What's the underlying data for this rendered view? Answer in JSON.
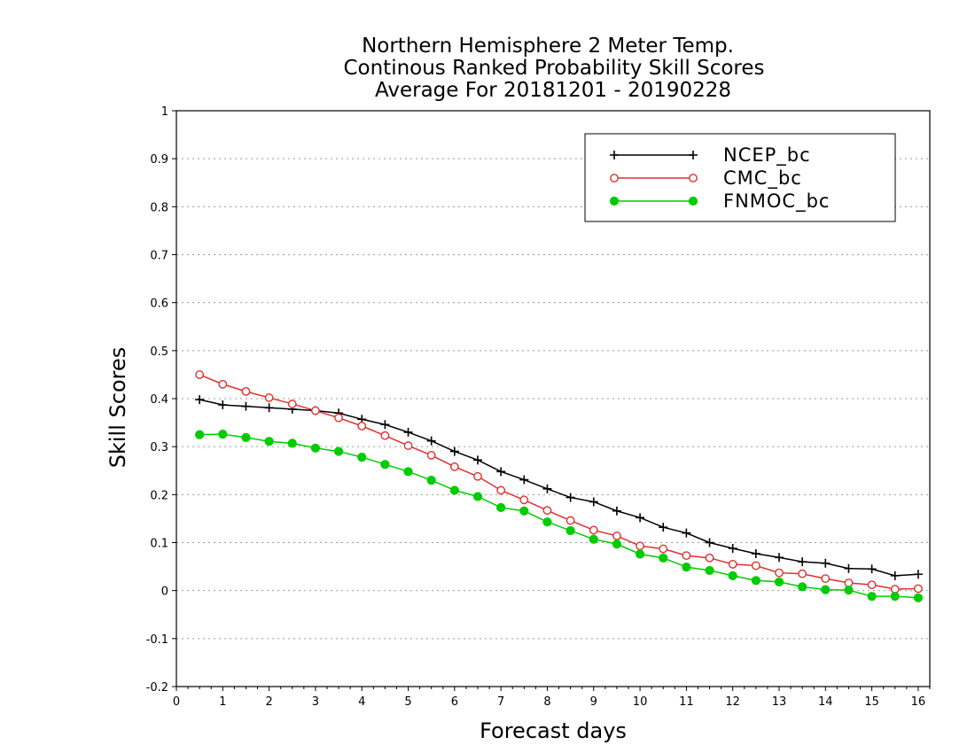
{
  "chart_data": {
    "type": "line",
    "title": [
      "Northern Hemisphere 2 Meter Temp.",
      "Continous Ranked Probability Skill Scores",
      "Average For 20181201 - 20190228"
    ],
    "xlabel": "Forecast days",
    "ylabel": "Skill Scores",
    "xlim": [
      0,
      16.25
    ],
    "ylim": [
      -0.2,
      1
    ],
    "xticks": [
      0,
      1,
      2,
      3,
      4,
      5,
      6,
      7,
      8,
      9,
      10,
      11,
      12,
      13,
      14,
      15,
      16
    ],
    "yticks": [
      -0.2,
      -0.1,
      0,
      0.1,
      0.2,
      0.3,
      0.4,
      0.5,
      0.6,
      0.7,
      0.8,
      0.9,
      1
    ],
    "ytick_labels": [
      "-0.2",
      "-0.1",
      "0",
      "0.1",
      "0.2",
      "0.3",
      "0.4",
      "0.5",
      "0.6",
      "0.7",
      "0.8",
      "0.9",
      "1"
    ],
    "grid": "horizontal-dotted",
    "legend_position": "top-right",
    "x": [
      0.5,
      1,
      1.5,
      2,
      2.5,
      3,
      3.5,
      4,
      4.5,
      5,
      5.5,
      6,
      6.5,
      7,
      7.5,
      8,
      8.5,
      9,
      9.5,
      10,
      10.5,
      11,
      11.5,
      12,
      12.5,
      13,
      13.5,
      14,
      14.5,
      15,
      15.5,
      16
    ],
    "series": [
      {
        "name": "NCEP_bc",
        "color": "#000000",
        "marker": "plus",
        "values": [
          0.398,
          0.387,
          0.384,
          0.381,
          0.378,
          0.375,
          0.37,
          0.357,
          0.346,
          0.33,
          0.312,
          0.29,
          0.272,
          0.248,
          0.231,
          0.212,
          0.194,
          0.185,
          0.166,
          0.152,
          0.132,
          0.12,
          0.1,
          0.088,
          0.077,
          0.069,
          0.06,
          0.057,
          0.046,
          0.045,
          0.031,
          0.034
        ]
      },
      {
        "name": "CMC_bc",
        "color": "#e03030",
        "marker": "open-circle",
        "values": [
          0.45,
          0.43,
          0.415,
          0.402,
          0.389,
          0.375,
          0.36,
          0.343,
          0.323,
          0.302,
          0.282,
          0.258,
          0.238,
          0.209,
          0.189,
          0.167,
          0.146,
          0.126,
          0.114,
          0.093,
          0.087,
          0.073,
          0.068,
          0.055,
          0.052,
          0.037,
          0.035,
          0.025,
          0.016,
          0.012,
          0.003,
          0.004
        ]
      },
      {
        "name": "FNMOC_bc",
        "color": "#00cc00",
        "marker": "filled-circle",
        "values": [
          0.325,
          0.326,
          0.319,
          0.311,
          0.307,
          0.297,
          0.29,
          0.278,
          0.263,
          0.248,
          0.23,
          0.209,
          0.196,
          0.173,
          0.166,
          0.143,
          0.125,
          0.107,
          0.097,
          0.076,
          0.068,
          0.049,
          0.042,
          0.031,
          0.021,
          0.018,
          0.008,
          0.002,
          0.001,
          -0.012,
          -0.012,
          -0.015
        ]
      }
    ]
  }
}
